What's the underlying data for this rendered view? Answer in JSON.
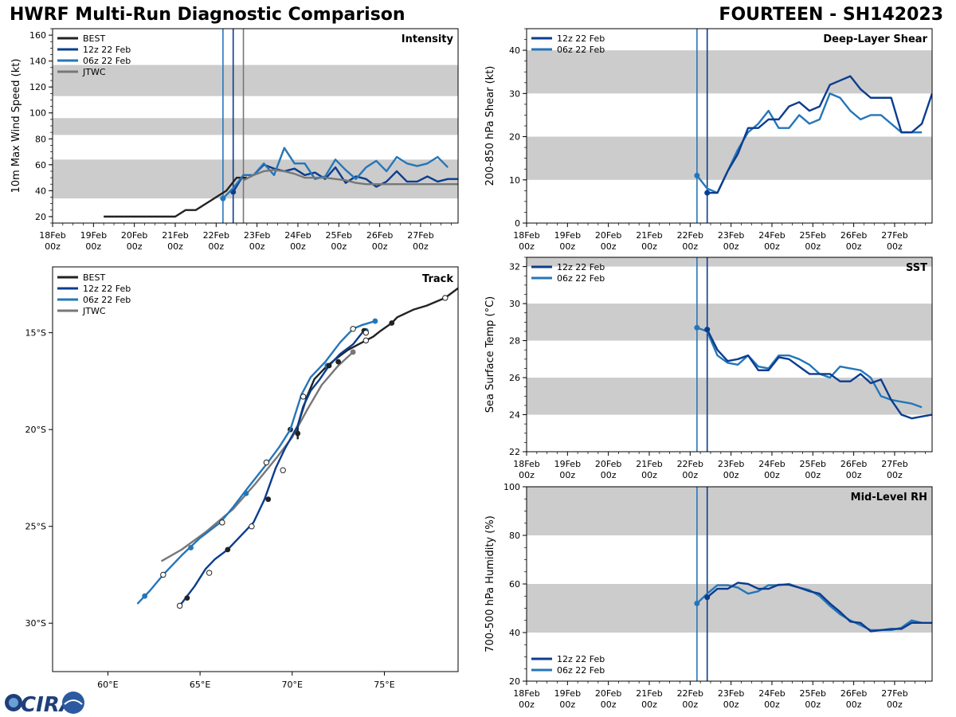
{
  "header": {
    "left_title": "HWRF Multi-Run Diagnostic Comparison",
    "right_title": "FOURTEEN - SH142023"
  },
  "logo": {
    "text": "CIRA"
  },
  "colors": {
    "best": "#222222",
    "run12": "#0b3d8f",
    "run06": "#2576b9",
    "jtwc": "#777777",
    "band": "#cccccc",
    "vline_gray": "#888888"
  },
  "time_axis": {
    "ticks": [
      "18Feb\n00z",
      "19Feb\n00z",
      "20Feb\n00z",
      "21Feb\n00z",
      "22Feb\n00z",
      "23Feb\n00z",
      "24Feb\n00z",
      "25Feb\n00z",
      "26Feb\n00z",
      "27Feb\n00z"
    ],
    "tick_hours": [
      0,
      24,
      48,
      72,
      96,
      120,
      144,
      168,
      192,
      216
    ],
    "range_hours": [
      0,
      238
    ]
  },
  "chart_data": [
    {
      "id": "intensity",
      "type": "line",
      "title": "Intensity",
      "ylabel": "10m Max Wind Speed (kt)",
      "ylim": [
        15,
        165
      ],
      "yticks": [
        20,
        40,
        60,
        80,
        100,
        120,
        140,
        160
      ],
      "bands": [
        [
          34,
          64
        ],
        [
          83,
          96
        ],
        [
          113,
          137
        ]
      ],
      "vlines": [
        {
          "x": 100,
          "color": "run06"
        },
        {
          "x": 106,
          "color": "run12"
        },
        {
          "x": 112,
          "color": "jtwc"
        }
      ],
      "legend": [
        "BEST",
        "12z 22 Feb",
        "06z 22 Feb",
        "JTWC"
      ],
      "series": [
        {
          "name": "BEST",
          "color": "best",
          "x": [
            30,
            36,
            42,
            48,
            54,
            60,
            66,
            72,
            78,
            84,
            90,
            96,
            102,
            108,
            114
          ],
          "y": [
            20,
            20,
            20,
            20,
            20,
            20,
            20,
            20,
            25,
            25,
            30,
            35,
            40,
            50,
            50
          ]
        },
        {
          "name": "12z 22 Feb",
          "color": "run12",
          "start": true,
          "x": [
            106,
            112,
            118,
            124,
            130,
            136,
            142,
            148,
            154,
            160,
            166,
            172,
            178,
            184,
            190,
            196,
            202,
            208,
            214,
            220,
            226,
            232,
            238
          ],
          "y": [
            39,
            52,
            52,
            60,
            57,
            55,
            57,
            52,
            54,
            49,
            58,
            46,
            51,
            49,
            43,
            47,
            55,
            47,
            47,
            51,
            47,
            49,
            49
          ]
        },
        {
          "name": "06z 22 Feb",
          "color": "run06",
          "start": true,
          "x": [
            100,
            106,
            112,
            118,
            124,
            130,
            136,
            142,
            148,
            154,
            160,
            166,
            172,
            178,
            184,
            190,
            196,
            202,
            208,
            214,
            220,
            226,
            232
          ],
          "y": [
            34,
            42,
            52,
            52,
            61,
            52,
            73,
            61,
            61,
            49,
            51,
            64,
            56,
            49,
            58,
            63,
            55,
            66,
            61,
            59,
            61,
            66,
            58
          ]
        },
        {
          "name": "JTWC",
          "color": "jtwc",
          "x": [
            112,
            118,
            124,
            130,
            136,
            142,
            148,
            154,
            160,
            166,
            172,
            178,
            184,
            190,
            196,
            202,
            208,
            214,
            220,
            226,
            232,
            238
          ],
          "y": [
            48,
            52,
            55,
            56,
            55,
            53,
            50,
            50,
            50,
            49,
            48,
            46,
            45,
            45,
            45,
            45,
            45,
            45,
            45,
            45,
            45,
            45
          ]
        }
      ]
    },
    {
      "id": "shear",
      "type": "line",
      "title": "Deep-Layer Shear",
      "ylabel": "200-850 hPa Shear (kt)",
      "ylim": [
        0,
        45
      ],
      "yticks": [
        0,
        10,
        20,
        30,
        40
      ],
      "bands": [
        [
          10,
          20
        ],
        [
          30,
          40
        ]
      ],
      "vlines": [
        {
          "x": 100,
          "color": "run06"
        },
        {
          "x": 106,
          "color": "run12"
        }
      ],
      "legend": [
        "12z 22 Feb",
        "06z 22 Feb"
      ],
      "series": [
        {
          "name": "06z 22 Feb",
          "color": "run06",
          "start": true,
          "x": [
            100,
            106,
            112,
            118,
            124,
            130,
            136,
            142,
            148,
            154,
            160,
            166,
            172,
            178,
            184,
            190,
            196,
            202,
            208,
            214,
            220,
            226,
            232
          ],
          "y": [
            11,
            8,
            7,
            12,
            17,
            21,
            23,
            26,
            22,
            22,
            25,
            23,
            24,
            30,
            29,
            26,
            24,
            25,
            25,
            23,
            21,
            21,
            21
          ]
        },
        {
          "name": "12z 22 Feb",
          "color": "run12",
          "start": true,
          "x": [
            106,
            112,
            118,
            124,
            130,
            136,
            142,
            148,
            154,
            160,
            166,
            172,
            178,
            184,
            190,
            196,
            202,
            208,
            214,
            220,
            226,
            232,
            238
          ],
          "y": [
            7,
            7,
            12,
            16,
            22,
            22,
            24,
            24,
            27,
            28,
            26,
            27,
            32,
            33,
            34,
            31,
            29,
            29,
            29,
            21,
            21,
            23,
            30
          ]
        }
      ]
    },
    {
      "id": "track",
      "type": "line",
      "title": "Track",
      "xlim": [
        57.0,
        79.0
      ],
      "ylim": [
        -32.5,
        -11.6
      ],
      "xticks": [
        60,
        65,
        70,
        75
      ],
      "xtick_labels": [
        "60°E",
        "65°E",
        "70°E",
        "75°E"
      ],
      "yticks": [
        -15,
        -20,
        -25,
        -30
      ],
      "ytick_labels": [
        "15°S",
        "20°S",
        "25°S",
        "30°S"
      ],
      "legend": [
        "BEST",
        "12z 22 Feb",
        "06z 22 Feb",
        "JTWC"
      ],
      "series": [
        {
          "name": "BEST",
          "color": "best",
          "lon": [
            79.0,
            78.3,
            77.3,
            76.6,
            75.7,
            75.4,
            74.8,
            74.4,
            74.0,
            73.0,
            72.3,
            71.8,
            71.2,
            70.8,
            70.5,
            70.3,
            70.3
          ],
          "lat": [
            -12.7,
            -13.2,
            -13.6,
            -13.8,
            -14.2,
            -14.5,
            -14.9,
            -15.2,
            -15.4,
            -15.9,
            -16.4,
            -16.8,
            -17.4,
            -18.3,
            -19.2,
            -19.8,
            -20.5
          ],
          "filled": [
            [
              75.4,
              -14.5
            ],
            [
              72.5,
              -16.5
            ],
            [
              69.9,
              -20.0
            ]
          ],
          "open": [
            [
              78.3,
              -13.2
            ],
            [
              74.0,
              -15.4
            ]
          ]
        },
        {
          "name": "12z 22 Feb",
          "color": "run12",
          "lon": [
            73.8,
            73.3,
            72.6,
            72.0,
            71.5,
            71.0,
            70.6,
            70.3,
            69.6,
            69.1,
            68.5,
            67.9,
            67.3,
            66.5,
            65.8,
            65.3,
            64.7,
            64.3,
            63.9
          ],
          "lat": [
            -15.0,
            -15.6,
            -16.1,
            -16.7,
            -17.4,
            -18.0,
            -18.8,
            -19.8,
            -21.0,
            -22.0,
            -23.6,
            -24.8,
            -25.4,
            -26.2,
            -26.7,
            -27.2,
            -28.1,
            -28.6,
            -29.1
          ],
          "filled": [
            [
              73.9,
              -14.9
            ],
            [
              72.0,
              -16.7
            ],
            [
              70.3,
              -20.2
            ],
            [
              68.7,
              -23.6
            ],
            [
              66.5,
              -26.2
            ],
            [
              64.3,
              -28.7
            ]
          ],
          "open": [
            [
              74.0,
              -15.0
            ],
            [
              69.5,
              -22.1
            ],
            [
              67.8,
              -25.0
            ],
            [
              65.5,
              -27.4
            ],
            [
              63.9,
              -29.1
            ]
          ]
        },
        {
          "name": "06z 22 Feb",
          "color": "run06",
          "lon": [
            74.5,
            73.8,
            73.3,
            72.6,
            71.8,
            71.0,
            70.5,
            69.9,
            69.3,
            68.6,
            67.6,
            66.8,
            66.1,
            65.0,
            64.0,
            63.0,
            62.3,
            61.6
          ],
          "lat": [
            -14.4,
            -14.6,
            -14.8,
            -15.5,
            -16.5,
            -17.3,
            -18.2,
            -20.0,
            -20.9,
            -21.8,
            -23.0,
            -24.0,
            -24.8,
            -25.6,
            -26.5,
            -27.5,
            -28.3,
            -29.0
          ],
          "filled": [
            [
              74.5,
              -14.4
            ],
            [
              74.0,
              -14.9
            ],
            [
              71.9,
              -16.7
            ],
            [
              67.5,
              -23.3
            ],
            [
              64.5,
              -26.1
            ],
            [
              62.0,
              -28.6
            ]
          ],
          "open": [
            [
              73.3,
              -14.8
            ],
            [
              70.6,
              -18.3
            ],
            [
              68.6,
              -21.7
            ],
            [
              66.2,
              -24.8
            ],
            [
              63.0,
              -27.5
            ]
          ]
        },
        {
          "name": "JTWC",
          "color": "jtwc",
          "lon": [
            73.3,
            72.5,
            71.6,
            70.8,
            70.0,
            69.2,
            68.0,
            66.8,
            65.3,
            64.0,
            62.9
          ],
          "lat": [
            -16.0,
            -16.7,
            -17.7,
            -19.0,
            -20.4,
            -21.4,
            -22.8,
            -24.1,
            -25.3,
            -26.2,
            -26.8
          ],
          "filled": [
            [
              73.3,
              -16.0
            ]
          ],
          "open": []
        }
      ]
    },
    {
      "id": "sst",
      "type": "line",
      "title": "SST",
      "ylabel": "Sea Surface Temp (°C)",
      "ylim": [
        22,
        32.5
      ],
      "yticks": [
        22,
        24,
        26,
        28,
        30,
        32
      ],
      "bands": [
        [
          24,
          26
        ],
        [
          28,
          30
        ],
        [
          32,
          34
        ]
      ],
      "vlines": [
        {
          "x": 100,
          "color": "run06"
        },
        {
          "x": 106,
          "color": "run12"
        }
      ],
      "legend": [
        "12z 22 Feb",
        "06z 22 Feb"
      ],
      "series": [
        {
          "name": "06z 22 Feb",
          "color": "run06",
          "start": true,
          "x": [
            100,
            106,
            112,
            118,
            124,
            130,
            136,
            142,
            148,
            154,
            160,
            166,
            172,
            178,
            184,
            190,
            196,
            202,
            208,
            214,
            220,
            226,
            232
          ],
          "y": [
            28.7,
            28.5,
            27.2,
            26.8,
            26.7,
            27.2,
            26.6,
            26.5,
            27.2,
            27.2,
            27.0,
            26.7,
            26.2,
            26.0,
            26.6,
            26.5,
            26.4,
            26.0,
            25.0,
            24.8,
            24.7,
            24.6,
            24.4
          ]
        },
        {
          "name": "12z 22 Feb",
          "color": "run12",
          "start": true,
          "x": [
            106,
            112,
            118,
            124,
            130,
            136,
            142,
            148,
            154,
            160,
            166,
            172,
            178,
            184,
            190,
            196,
            202,
            208,
            214,
            220,
            226,
            232,
            238
          ],
          "y": [
            28.6,
            27.5,
            26.9,
            27.0,
            27.2,
            26.4,
            26.4,
            27.1,
            27.0,
            26.6,
            26.2,
            26.2,
            26.2,
            25.8,
            25.8,
            26.2,
            25.7,
            25.9,
            24.8,
            24.0,
            23.8,
            23.9,
            24.0
          ]
        }
      ]
    },
    {
      "id": "rh",
      "type": "line",
      "title": "Mid-Level RH",
      "ylabel": "700-500 hPa Humidity (%)",
      "ylim": [
        20,
        100
      ],
      "yticks": [
        20,
        40,
        60,
        80,
        100
      ],
      "bands": [
        [
          40,
          60
        ],
        [
          80,
          100
        ]
      ],
      "vlines": [
        {
          "x": 100,
          "color": "run06"
        },
        {
          "x": 106,
          "color": "run12"
        }
      ],
      "legend": [
        "12z 22 Feb",
        "06z 22 Feb"
      ],
      "series": [
        {
          "name": "06z 22 Feb",
          "color": "run06",
          "start": true,
          "x": [
            100,
            106,
            112,
            118,
            124,
            130,
            136,
            142,
            148,
            154,
            160,
            166,
            172,
            178,
            184,
            190,
            196,
            202,
            208,
            214,
            220,
            226,
            232
          ],
          "y": [
            52,
            56,
            59.5,
            59.5,
            58.5,
            56,
            57,
            59.5,
            59.5,
            60,
            58.5,
            57.5,
            55,
            51,
            47.5,
            45,
            43,
            41,
            41,
            41,
            42,
            45,
            44
          ]
        },
        {
          "name": "12z 22 Feb",
          "color": "run12",
          "start": true,
          "x": [
            106,
            112,
            118,
            124,
            130,
            136,
            142,
            148,
            154,
            160,
            166,
            172,
            178,
            184,
            190,
            196,
            202,
            208,
            214,
            220,
            226,
            232,
            238
          ],
          "y": [
            54.5,
            58,
            58,
            60.5,
            60,
            58,
            58,
            59.7,
            59.7,
            58.5,
            57,
            56,
            52,
            48.5,
            44.5,
            44,
            40.5,
            41,
            41.5,
            41.5,
            44,
            44,
            44
          ]
        }
      ]
    }
  ]
}
